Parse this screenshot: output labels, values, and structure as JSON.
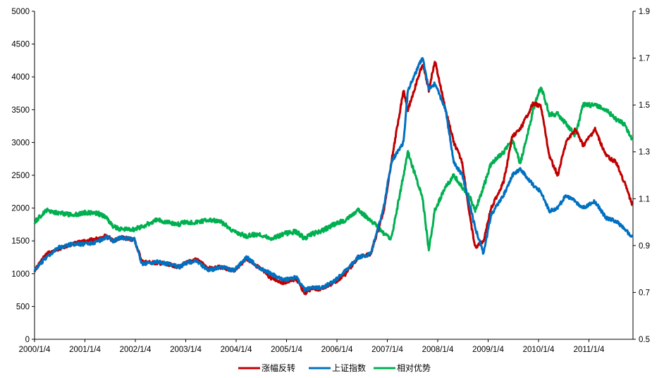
{
  "chart_data": {
    "type": "line",
    "title": "",
    "xlabel": "",
    "ylabel": "",
    "x_tick_labels": [
      "2000/1/4",
      "2001/1/4",
      "2002/1/4",
      "2003/1/4",
      "2004/1/4",
      "2005/1/4",
      "2006/1/4",
      "2007/1/4",
      "2008/1/4",
      "2009/1/4",
      "2010/1/4",
      "2011/1/4"
    ],
    "x_range": [
      "2000/1/4",
      "2012/1/4"
    ],
    "y_left": {
      "range": [
        0,
        5000
      ],
      "ticks": [
        "0",
        "500",
        "1000",
        "1500",
        "2000",
        "2500",
        "3000",
        "3500",
        "4000",
        "4500",
        "5000"
      ]
    },
    "y_right": {
      "range": [
        0.5,
        1.9
      ],
      "ticks": [
        "0.5",
        "0.7",
        "0.9",
        "1.1",
        "1.3",
        "1.5",
        "1.7",
        "1.9"
      ]
    },
    "grid": false,
    "legend_position": "bottom",
    "series": [
      {
        "name": "涨幅反转",
        "color": "#C00000",
        "axis": "left",
        "x": [
          "2000/1/4",
          "2000/4/1",
          "2000/7/1",
          "2000/10/1",
          "2001/1/4",
          "2001/4/1",
          "2001/6/14",
          "2001/8/1",
          "2001/10/1",
          "2002/1/4",
          "2002/3/1",
          "2002/6/24",
          "2002/9/1",
          "2002/12/1",
          "2003/1/4",
          "2003/4/1",
          "2003/7/1",
          "2003/10/1",
          "2004/1/4",
          "2004/4/7",
          "2004/7/1",
          "2004/10/1",
          "2005/1/4",
          "2005/4/1",
          "2005/6/6",
          "2005/8/1",
          "2005/10/1",
          "2006/1/4",
          "2006/4/1",
          "2006/7/1",
          "2006/10/1",
          "2007/1/4",
          "2007/3/1",
          "2007/5/29",
          "2007/7/1",
          "2007/10/16",
          "2007/12/1",
          "2008/1/14",
          "2008/4/1",
          "2008/6/1",
          "2008/8/1",
          "2008/10/1",
          "2008/11/4",
          "2009/1/4",
          "2009/3/1",
          "2009/6/1",
          "2009/8/4",
          "2009/10/1",
          "2010/1/4",
          "2010/3/1",
          "2010/5/1",
          "2010/7/2",
          "2010/9/1",
          "2010/11/8",
          "2011/1/4",
          "2011/4/1",
          "2011/6/20",
          "2011/9/1",
          "2011/11/1",
          "2011/12/30"
        ],
        "values": [
          1050,
          1300,
          1380,
          1450,
          1490,
          1530,
          1580,
          1500,
          1550,
          1520,
          1180,
          1160,
          1150,
          1100,
          1150,
          1220,
          1080,
          1100,
          1050,
          1230,
          1100,
          930,
          860,
          920,
          700,
          780,
          760,
          860,
          1000,
          1250,
          1300,
          1950,
          2700,
          3800,
          3500,
          4200,
          3800,
          4250,
          3500,
          3000,
          2700,
          1800,
          1400,
          1500,
          2000,
          2400,
          3100,
          3200,
          3600,
          3550,
          2800,
          2500,
          3000,
          3200,
          2950,
          3200,
          2800,
          2700,
          2400,
          2050
        ]
      },
      {
        "name": "上证指数",
        "color": "#0070C0",
        "axis": "left",
        "x": [
          "2000/1/4",
          "2000/4/1",
          "2000/7/1",
          "2000/10/1",
          "2001/1/4",
          "2001/4/1",
          "2001/6/14",
          "2001/8/1",
          "2001/10/1",
          "2002/1/4",
          "2002/3/1",
          "2002/6/24",
          "2002/9/1",
          "2002/12/1",
          "2003/1/4",
          "2003/4/1",
          "2003/7/1",
          "2003/10/1",
          "2004/1/4",
          "2004/4/7",
          "2004/7/1",
          "2004/10/1",
          "2005/1/4",
          "2005/4/1",
          "2005/6/6",
          "2005/8/1",
          "2005/10/1",
          "2006/1/4",
          "2006/4/1",
          "2006/7/1",
          "2006/10/1",
          "2007/1/4",
          "2007/3/1",
          "2007/5/29",
          "2007/7/1",
          "2007/10/16",
          "2007/12/1",
          "2008/1/14",
          "2008/4/1",
          "2008/6/1",
          "2008/8/1",
          "2008/10/1",
          "2008/11/4",
          "2009/1/4",
          "2009/3/1",
          "2009/6/1",
          "2009/8/4",
          "2009/10/1",
          "2010/1/4",
          "2010/3/1",
          "2010/5/1",
          "2010/7/2",
          "2010/9/1",
          "2010/11/8",
          "2011/1/4",
          "2011/4/1",
          "2011/6/20",
          "2011/9/1",
          "2011/11/1",
          "2011/12/30"
        ],
        "values": [
          1050,
          1250,
          1400,
          1450,
          1450,
          1480,
          1560,
          1500,
          1550,
          1520,
          1150,
          1180,
          1150,
          1100,
          1150,
          1200,
          1050,
          1100,
          1050,
          1250,
          1100,
          1000,
          900,
          950,
          750,
          800,
          780,
          880,
          1050,
          1250,
          1300,
          2000,
          2700,
          3000,
          3800,
          4300,
          3800,
          3900,
          3500,
          2700,
          2500,
          2000,
          1700,
          1300,
          1900,
          2200,
          2500,
          2600,
          2350,
          2250,
          1950,
          2000,
          2200,
          2100,
          2000,
          2100,
          1850,
          1800,
          1700,
          1550
        ]
      },
      {
        "name": "相对优势",
        "color": "#00B050",
        "axis": "right",
        "x": [
          "2000/1/4",
          "2000/4/1",
          "2000/7/1",
          "2000/10/1",
          "2001/1/4",
          "2001/4/1",
          "2001/6/14",
          "2001/8/1",
          "2001/10/1",
          "2002/1/4",
          "2002/3/1",
          "2002/6/24",
          "2002/9/1",
          "2002/12/1",
          "2003/1/4",
          "2003/4/1",
          "2003/7/1",
          "2003/10/1",
          "2004/1/4",
          "2004/4/7",
          "2004/7/1",
          "2004/10/1",
          "2005/1/4",
          "2005/4/1",
          "2005/6/6",
          "2005/8/1",
          "2005/10/1",
          "2006/1/4",
          "2006/4/1",
          "2006/7/1",
          "2006/10/1",
          "2007/1/4",
          "2007/3/1",
          "2007/5/29",
          "2007/7/1",
          "2007/10/16",
          "2007/12/1",
          "2008/1/14",
          "2008/4/1",
          "2008/6/1",
          "2008/8/1",
          "2008/10/1",
          "2008/11/4",
          "2009/1/4",
          "2009/3/1",
          "2009/6/1",
          "2009/8/4",
          "2009/10/1",
          "2010/1/4",
          "2010/3/1",
          "2010/5/1",
          "2010/7/2",
          "2010/9/1",
          "2010/11/8",
          "2011/1/4",
          "2011/4/1",
          "2011/6/20",
          "2011/9/1",
          "2011/11/1",
          "2011/12/30"
        ],
        "values": [
          1.0,
          1.05,
          1.04,
          1.03,
          1.04,
          1.04,
          1.02,
          0.98,
          0.97,
          0.97,
          0.98,
          1.01,
          1.0,
          0.99,
          1.0,
          1.0,
          1.01,
          1.0,
          0.96,
          0.94,
          0.95,
          0.93,
          0.95,
          0.96,
          0.93,
          0.95,
          0.96,
          0.99,
          1.01,
          1.05,
          1.01,
          0.95,
          0.93,
          1.2,
          1.3,
          1.1,
          0.88,
          1.05,
          1.15,
          1.2,
          1.15,
          1.1,
          1.05,
          1.15,
          1.25,
          1.3,
          1.35,
          1.25,
          1.48,
          1.58,
          1.46,
          1.46,
          1.42,
          1.37,
          1.5,
          1.5,
          1.48,
          1.44,
          1.42,
          1.35
        ]
      }
    ]
  }
}
